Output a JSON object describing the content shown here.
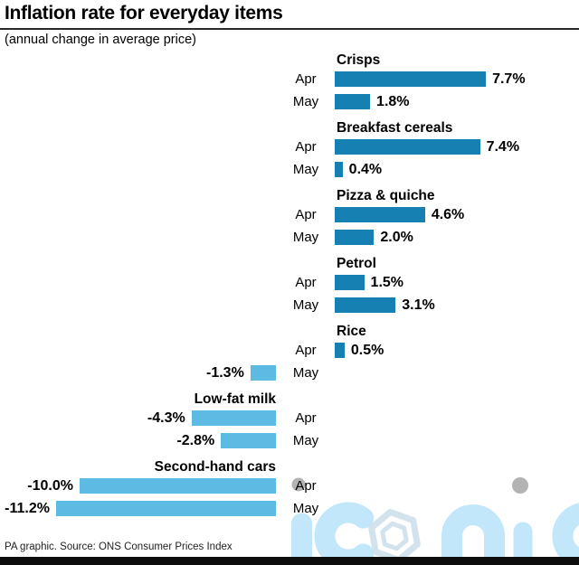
{
  "header": {
    "title": "Inflation rate for everyday items",
    "subtitle": "(annual change in average price)"
  },
  "chart_data": {
    "type": "bar",
    "orientation": "horizontal",
    "value_unit": "%",
    "categories": [
      "Apr",
      "May"
    ],
    "groups": [
      {
        "name": "Crisps",
        "bars": [
          {
            "month": "Apr",
            "value": 7.7,
            "label": "7.7%"
          },
          {
            "month": "May",
            "value": 1.8,
            "label": "1.8%"
          }
        ]
      },
      {
        "name": "Breakfast cereals",
        "bars": [
          {
            "month": "Apr",
            "value": 7.4,
            "label": "7.4%"
          },
          {
            "month": "May",
            "value": 0.4,
            "label": "0.4%"
          }
        ]
      },
      {
        "name": "Pizza & quiche",
        "bars": [
          {
            "month": "Apr",
            "value": 4.6,
            "label": "4.6%"
          },
          {
            "month": "May",
            "value": 2.0,
            "label": "2.0%"
          }
        ]
      },
      {
        "name": "Petrol",
        "bars": [
          {
            "month": "Apr",
            "value": 1.5,
            "label": "1.5%"
          },
          {
            "month": "May",
            "value": 3.1,
            "label": "3.1%"
          }
        ]
      },
      {
        "name": "Rice",
        "bars": [
          {
            "month": "Apr",
            "value": 0.5,
            "label": "0.5%"
          },
          {
            "month": "May",
            "value": -1.3,
            "label": "-1.3%"
          }
        ]
      },
      {
        "name": "Low-fat milk",
        "bars": [
          {
            "month": "Apr",
            "value": -4.3,
            "label": "-4.3%"
          },
          {
            "month": "May",
            "value": -2.8,
            "label": "-2.8%"
          }
        ]
      },
      {
        "name": "Second-hand cars",
        "bars": [
          {
            "month": "Apr",
            "value": -10.0,
            "label": "-10.0%"
          },
          {
            "month": "May",
            "value": -11.2,
            "label": "-11.2%"
          }
        ]
      }
    ],
    "xlim": [
      -11.2,
      7.7
    ],
    "grid": false,
    "legend": "none",
    "colors": {
      "positive": "#1780b3",
      "negative": "#5dbae2"
    }
  },
  "watermark": {
    "text": "iconic",
    "colors": {
      "letters": "#c2e7fa",
      "dots": "#b3b3b3",
      "hexagon": "#cbdfec"
    }
  },
  "footer": {
    "credit": "PA graphic. Source: ONS Consumer Prices Index"
  }
}
